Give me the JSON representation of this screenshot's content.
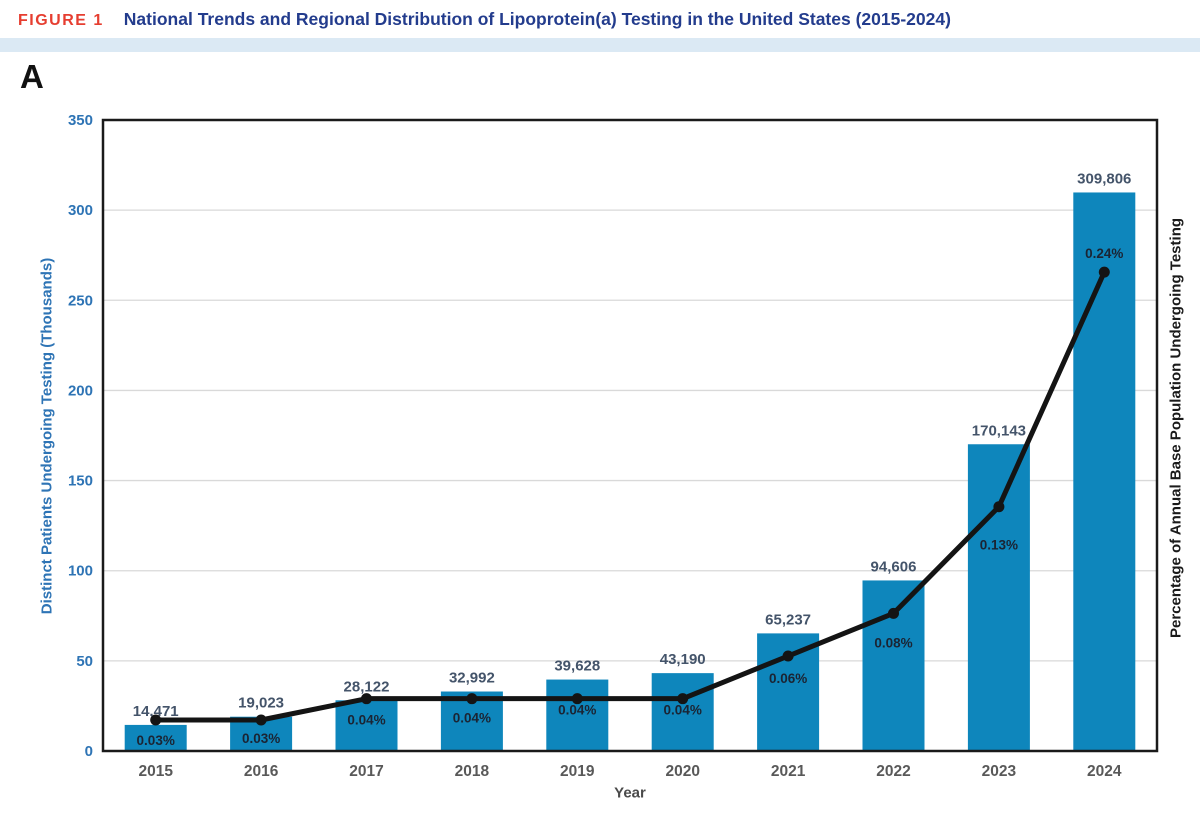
{
  "figure": {
    "label": "FIGURE 1",
    "title": "National Trends and Regional Distribution of Lipoprotein(a) Testing in the United States (2015-2024)"
  },
  "panel": {
    "label": "A"
  },
  "chart_data": {
    "type": "combo",
    "categories": [
      "2015",
      "2016",
      "2017",
      "2018",
      "2019",
      "2020",
      "2021",
      "2022",
      "2023",
      "2024"
    ],
    "series": [
      {
        "name": "Distinct Patients Undergoing Testing",
        "type": "bar",
        "values": [
          14471,
          19023,
          28122,
          32992,
          39628,
          43190,
          65237,
          94606,
          170143,
          309806
        ],
        "labels": [
          "14,471",
          "19,023",
          "28,122",
          "32,992",
          "39,628",
          "43,190",
          "65,237",
          "94,606",
          "170,143",
          "309,806"
        ]
      },
      {
        "name": "Percentage of Annual Base Population Undergoing Testing",
        "type": "line",
        "values": [
          0.03,
          0.03,
          0.04,
          0.04,
          0.04,
          0.04,
          0.06,
          0.08,
          0.13,
          0.24
        ],
        "labels": [
          "0.03%",
          "0.03%",
          "0.04%",
          "0.04%",
          "0.04%",
          "0.04%",
          "0.06%",
          "0.08%",
          "0.13%",
          "0.24%"
        ]
      }
    ],
    "xlabel": "Year",
    "ylabel_left": "Distinct Patients Undergoing Testing (Thousands)",
    "ylabel_right": "Percentage of Annual Base Population Undergoing Testing",
    "ylim_left": [
      0,
      350
    ],
    "yticks_left": [
      0,
      50,
      100,
      150,
      200,
      250,
      300,
      350
    ],
    "ytick_labels_left": [
      "0",
      "50",
      "100",
      "150",
      "200",
      "250",
      "300",
      "350"
    ],
    "grid": "horizontal",
    "legend": "none"
  },
  "colors": {
    "figure_label": "#e63e30",
    "figure_title": "#233c8d",
    "header_band": "#dbe9f4",
    "bar": "#0e86bc",
    "line": "#141414",
    "gridline": "#d9d9d9",
    "plot_border": "#1a1a1a",
    "ytick_left": "#2e74b5",
    "bar_value_label": "#44546a",
    "pct_label": "#1b2433",
    "year_label": "#595959"
  }
}
